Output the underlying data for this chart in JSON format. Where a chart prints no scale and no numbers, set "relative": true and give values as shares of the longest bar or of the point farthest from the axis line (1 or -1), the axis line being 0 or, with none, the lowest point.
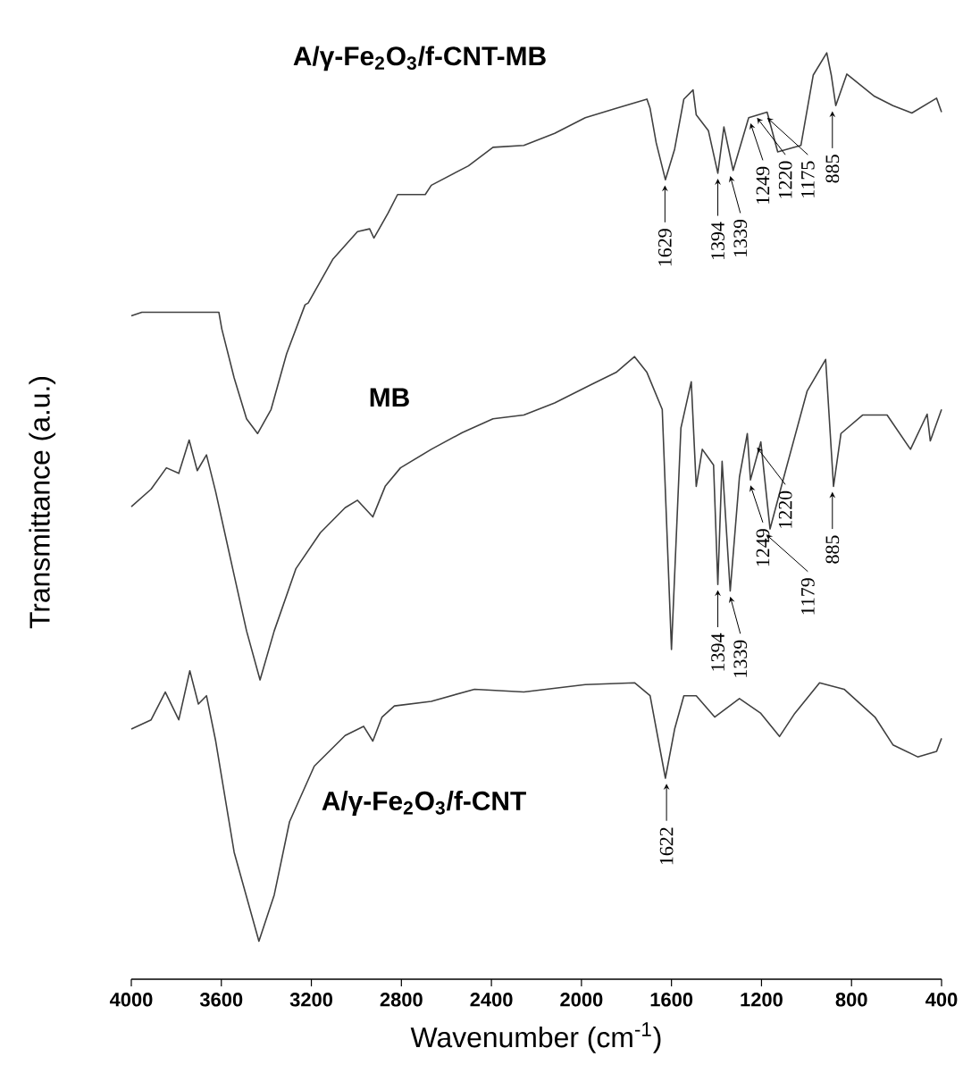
{
  "chart_data": {
    "type": "line",
    "relative": true,
    "xlabel": "Wavenumber (cm$^{-1}$)",
    "ylabel": "Transmittance (a.u.)",
    "xlim": [
      4000,
      400
    ],
    "xticks": [
      4000,
      3600,
      3200,
      2800,
      2400,
      2000,
      1600,
      1200,
      800,
      400
    ],
    "tick_labels": "x",
    "series": [
      {
        "name": "A/γ-Fe$_{2}$O$_{3}$/f-CNT-MB",
        "color": "#404040",
        "x": [
          4000,
          3953,
          3611,
          3598,
          3543,
          3488,
          3439,
          3379,
          3310,
          3228,
          3214,
          3105,
          2995,
          2941,
          2922,
          2859,
          2817,
          2694,
          2667,
          2502,
          2393,
          2256,
          2119,
          1983,
          1846,
          1709,
          1695,
          1668,
          1627,
          1586,
          1545,
          1504,
          1490,
          1436,
          1394,
          1367,
          1326,
          1257,
          1175,
          1128,
          1025,
          970,
          910,
          890,
          870,
          821,
          698,
          616,
          532,
          422,
          400
        ],
        "values": [
          0.716,
          0.72,
          0.72,
          0.702,
          0.649,
          0.605,
          0.589,
          0.615,
          0.675,
          0.728,
          0.73,
          0.777,
          0.807,
          0.81,
          0.8,
          0.827,
          0.847,
          0.847,
          0.857,
          0.878,
          0.898,
          0.9,
          0.913,
          0.93,
          0.94,
          0.95,
          0.94,
          0.903,
          0.863,
          0.896,
          0.95,
          0.96,
          0.933,
          0.916,
          0.87,
          0.92,
          0.873,
          0.93,
          0.936,
          0.893,
          0.9,
          0.976,
          1,
          0.976,
          0.943,
          0.977,
          0.953,
          0.943,
          0.935,
          0.951,
          0.936
        ]
      },
      {
        "name": "MB",
        "color": "#404040",
        "x": [
          4000,
          3912,
          3844,
          3789,
          3743,
          3707,
          3666,
          3625,
          3543,
          3488,
          3428,
          3365,
          3269,
          3160,
          3050,
          2995,
          2927,
          2872,
          2804,
          2667,
          2530,
          2393,
          2256,
          2119,
          1955,
          1846,
          1764,
          1709,
          1641,
          1600,
          1558,
          1512,
          1490,
          1463,
          1413,
          1394,
          1375,
          1339,
          1298,
          1263,
          1249,
          1203,
          1162,
          1093,
          997,
          915,
          880,
          847,
          751,
          642,
          538,
          464,
          450,
          400
        ],
        "values": [
          0.51,
          0.529,
          0.552,
          0.546,
          0.582,
          0.549,
          0.566,
          0.526,
          0.436,
          0.376,
          0.323,
          0.376,
          0.443,
          0.482,
          0.509,
          0.517,
          0.499,
          0.532,
          0.552,
          0.572,
          0.59,
          0.605,
          0.609,
          0.622,
          0.642,
          0.655,
          0.672,
          0.655,
          0.615,
          0.356,
          0.595,
          0.645,
          0.532,
          0.572,
          0.555,
          0.426,
          0.559,
          0.419,
          0.542,
          0.589,
          0.539,
          0.58,
          0.486,
          0.549,
          0.635,
          0.669,
          0.532,
          0.589,
          0.609,
          0.609,
          0.572,
          0.61,
          0.581,
          0.615
        ]
      },
      {
        "name": "A/γ-Fe$_{2}$O$_{3}$/f-CNT",
        "color": "#404040",
        "x": [
          4000,
          3912,
          3849,
          3789,
          3740,
          3702,
          3666,
          3625,
          3543,
          3433,
          3365,
          3297,
          3187,
          3050,
          2968,
          2927,
          2886,
          2831,
          2667,
          2475,
          2256,
          1983,
          1764,
          1695,
          1627,
          1586,
          1545,
          1490,
          1408,
          1298,
          1203,
          1120,
          1052,
          942,
          833,
          696,
          616,
          506,
          422,
          400
        ],
        "values": [
          0.27,
          0.28,
          0.31,
          0.28,
          0.333,
          0.297,
          0.306,
          0.257,
          0.137,
          0.041,
          0.091,
          0.17,
          0.23,
          0.263,
          0.273,
          0.257,
          0.283,
          0.295,
          0.3,
          0.313,
          0.31,
          0.318,
          0.32,
          0.306,
          0.217,
          0.27,
          0.306,
          0.306,
          0.283,
          0.303,
          0.287,
          0.262,
          0.287,
          0.32,
          0.313,
          0.283,
          0.253,
          0.24,
          0.246,
          0.26
        ]
      }
    ],
    "annotations": [
      {
        "text": "1629",
        "x": 1629,
        "y": 0.863
      },
      {
        "text": "1394",
        "x": 1394,
        "y": 0.87
      },
      {
        "text": "1339",
        "x": 1339,
        "y": 0.873
      },
      {
        "text": "1249",
        "x": 1249,
        "y": 0.93
      },
      {
        "text": "1220",
        "x": 1220,
        "y": 0.936
      },
      {
        "text": "1175",
        "x": 1175,
        "y": 0.936
      },
      {
        "text": "885",
        "x": 885,
        "y": 0.943
      },
      {
        "text": "1394",
        "x": 1394,
        "y": 0.426
      },
      {
        "text": "1339",
        "x": 1339,
        "y": 0.419
      },
      {
        "text": "1249",
        "x": 1249,
        "y": 0.539
      },
      {
        "text": "1220",
        "x": 1220,
        "y": 0.58
      },
      {
        "text": "1179",
        "x": 1179,
        "y": 0.486
      },
      {
        "text": "885",
        "x": 885,
        "y": 0.532
      },
      {
        "text": "1622",
        "x": 1622,
        "y": 0.217
      }
    ]
  }
}
